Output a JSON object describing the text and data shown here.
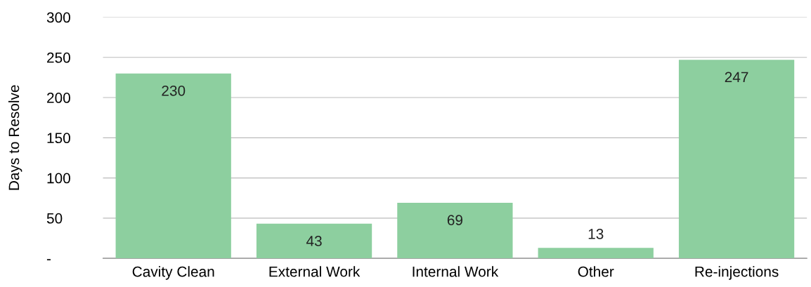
{
  "chart_data": {
    "type": "bar",
    "ylabel": "Days to Resolve",
    "categories": [
      "Cavity Clean",
      "External Work",
      "Internal Work",
      "Other",
      "Re-injections"
    ],
    "values": [
      230,
      43,
      69,
      13,
      247
    ],
    "color": "#8dcf9f",
    "ylim": [
      0,
      300
    ],
    "yticks": [
      {
        "value": 0,
        "label": "-"
      },
      50,
      100,
      150,
      200,
      250,
      300
    ],
    "grid": "y",
    "data_labels": true
  }
}
